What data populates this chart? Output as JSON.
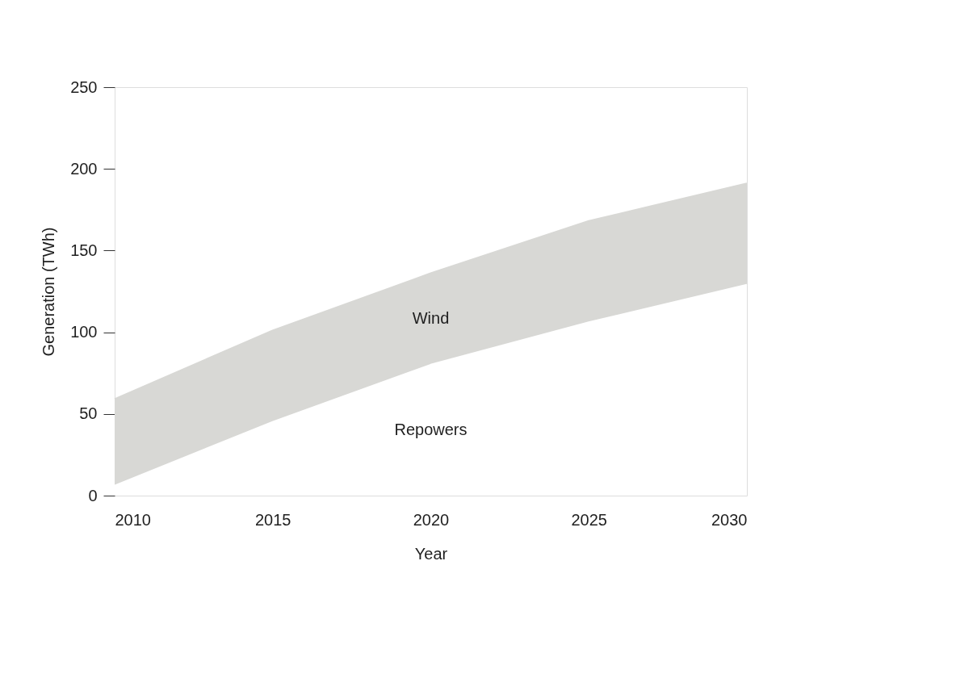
{
  "chart_data": {
    "type": "area",
    "xlabel": "Year",
    "ylabel": "Generation (TWh)",
    "x": [
      2010,
      2015,
      2020,
      2025,
      2030
    ],
    "stacked": true,
    "series": [
      {
        "name": "Repowers",
        "color": "#ffffff",
        "values": [
          6,
          45,
          80,
          106,
          129
        ]
      },
      {
        "name": "Wind",
        "color": "#d8d8d5",
        "values": [
          53,
          56,
          56,
          62,
          62
        ]
      }
    ],
    "xlim": [
      2010,
      2030
    ],
    "xticks": [
      2010,
      2015,
      2020,
      2025,
      2030
    ],
    "ylim": [
      0,
      250
    ],
    "yticks": [
      0,
      50,
      100,
      150,
      200,
      250
    ],
    "grid": false,
    "legend": false
  }
}
